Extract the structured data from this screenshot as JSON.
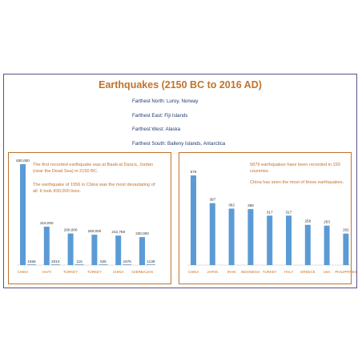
{
  "colors": {
    "bar": "#5b9bd5",
    "accent": "#c0732b",
    "frame": "#5b4f8c",
    "facts": "#1f3b73"
  },
  "header": {
    "title": "Earthquakes (2150 BC to 2016 AD)",
    "facts": [
      "Farthest North: Luroy, Norway",
      "Farthest East: Fiji Islands",
      "Farthest West: Alaska",
      "Farthest South: Balleny Islands, Antarctica"
    ]
  },
  "left_notes": {
    "line1": "The first recorded earthquake was at Baab-al Dara'a, Jordan",
    "line2": "(near the Dead Sea) in 2150 BC.",
    "line3": "The earthquake of 1556 in China was the most devastating of",
    "line4": "all. It took 830,000 lives."
  },
  "right_notes": {
    "line1": "5879 earthquakes have been recorded in 150 countries.",
    "line2": "China has seen the most of these earthquakes."
  },
  "chart_data": [
    {
      "type": "bar",
      "categories": [
        "CHINA",
        "HAITI",
        "TURKEY",
        "TURKEY",
        "CHINA",
        "AZERBAIJAN"
      ],
      "values": [
        830000,
        316000,
        260000,
        250000,
        242769,
        230000
      ],
      "value_labels": [
        "830,000",
        "316,000",
        "260,000",
        "250,000",
        "242,769",
        "230,000"
      ],
      "year_labels": [
        "1556",
        "2010",
        "115",
        "525",
        "1976",
        "1139"
      ],
      "ylim": [
        0,
        830000
      ]
    },
    {
      "type": "bar",
      "categories": [
        "CHINA",
        "JAPAN",
        "IRAN",
        "INDONESIA",
        "TURKEY",
        "ITALY",
        "GREECE",
        "USA",
        "PHILIPPINES"
      ],
      "values": [
        575,
        397,
        362,
        359,
        317,
        317,
        258,
        253,
        202
      ],
      "value_labels": [
        "575",
        "397",
        "362",
        "359",
        "317",
        "317",
        "258",
        "253",
        "202"
      ],
      "ylim": [
        0,
        575
      ]
    }
  ]
}
